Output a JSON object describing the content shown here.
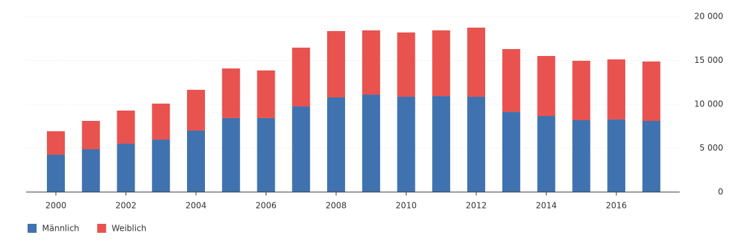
{
  "chart_data": {
    "type": "stacked-bar",
    "categories": [
      "2000",
      null,
      "2002",
      null,
      "2004",
      null,
      "2006",
      null,
      "2008",
      null,
      "2010",
      null,
      "2012",
      null,
      "2014",
      null,
      "2016",
      null
    ],
    "series": [
      {
        "name": "Männlich",
        "color": "#3f72af",
        "values": [
          4250,
          4880,
          5510,
          5980,
          7010,
          8430,
          8430,
          9760,
          10790,
          11100,
          10870,
          10940,
          10870,
          9130,
          8660,
          8190,
          8270,
          8110
        ]
      },
      {
        "name": "Weiblich",
        "color": "#e8534f",
        "values": [
          2680,
          3230,
          3780,
          4100,
          4640,
          5660,
          5430,
          6700,
          7560,
          7330,
          7320,
          7490,
          7870,
          7170,
          6850,
          6770,
          6850,
          6770
        ]
      }
    ],
    "ylim": [
      0,
      20000
    ],
    "yticks": [
      0,
      {
        "value": 5000,
        "label": "5 000"
      },
      {
        "value": 10000,
        "label": "10 000"
      },
      {
        "value": 15000,
        "label": "15 000"
      },
      {
        "value": 20000,
        "label": "20 000"
      }
    ],
    "grid": true
  }
}
